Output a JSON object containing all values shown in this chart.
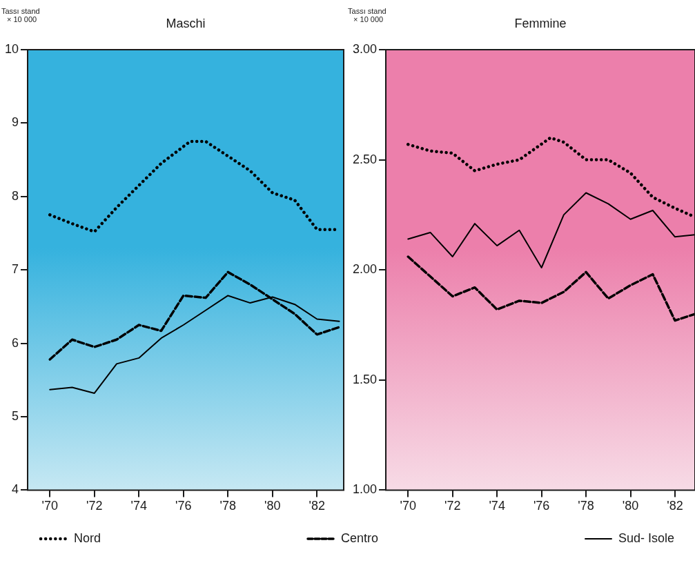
{
  "chart_data": [
    {
      "type": "line",
      "title": "Maschi",
      "ylabel": "Tassı stand × 10 000",
      "xlim": [
        1969,
        1983.2
      ],
      "xticks": [
        {
          "value": 1970,
          "label": "'70"
        },
        {
          "value": 1972,
          "label": "'72"
        },
        {
          "value": 1974,
          "label": "'74"
        },
        {
          "value": 1976,
          "label": "'76"
        },
        {
          "value": 1978,
          "label": "'78"
        },
        {
          "value": 1980,
          "label": "'80"
        },
        {
          "value": 1982,
          "label": "'82"
        }
      ],
      "ylim": [
        4,
        10
      ],
      "yticks": [
        4,
        5,
        6,
        7,
        8,
        9,
        10
      ],
      "legend": "bottom",
      "marker": "none",
      "series": [
        {
          "name": "Nord",
          "color": "#000000",
          "line_style": "dotted",
          "x": [
            1970,
            1971,
            1972,
            1973,
            1974,
            1975,
            1976.3,
            1977,
            1978,
            1979,
            1980,
            1981,
            1982,
            1983
          ],
          "values": [
            7.75,
            7.63,
            7.52,
            7.85,
            8.15,
            8.45,
            8.75,
            8.75,
            8.55,
            8.35,
            8.05,
            7.95,
            7.55,
            7.55
          ]
        },
        {
          "name": "Centro",
          "color": "#000000",
          "line_style": "dashed",
          "x": [
            1970,
            1971,
            1972,
            1973,
            1974,
            1975,
            1976,
            1977,
            1978,
            1979,
            1980,
            1981,
            1982,
            1983
          ],
          "values": [
            5.78,
            6.05,
            5.95,
            6.05,
            6.25,
            6.17,
            6.65,
            6.62,
            6.97,
            6.8,
            6.6,
            6.4,
            6.12,
            6.22
          ]
        },
        {
          "name": "Sud- Isole",
          "color": "#000000",
          "line_style": "solid",
          "x": [
            1970,
            1971,
            1972,
            1973,
            1974,
            1975,
            1976,
            1977,
            1978,
            1979,
            1980,
            1981,
            1982,
            1983
          ],
          "values": [
            5.37,
            5.4,
            5.32,
            5.72,
            5.8,
            6.07,
            6.25,
            6.45,
            6.65,
            6.55,
            6.63,
            6.53,
            6.33,
            6.3
          ]
        }
      ]
    },
    {
      "type": "line",
      "title": "Femmine",
      "ylabel": "Tassı stand × 10 000",
      "xlim": [
        1969,
        1982.9
      ],
      "xticks": [
        {
          "value": 1970,
          "label": "'70"
        },
        {
          "value": 1972,
          "label": "'72"
        },
        {
          "value": 1974,
          "label": "'74"
        },
        {
          "value": 1976,
          "label": "'76"
        },
        {
          "value": 1978,
          "label": "'78"
        },
        {
          "value": 1980,
          "label": "'80"
        },
        {
          "value": 1982,
          "label": "'82"
        }
      ],
      "ylim": [
        1,
        3
      ],
      "yticks": [
        {
          "value": 1,
          "label": "1.00"
        },
        {
          "value": 1.5,
          "label": "1.50"
        },
        {
          "value": 2,
          "label": "2.00"
        },
        {
          "value": 2.5,
          "label": "2.50"
        },
        {
          "value": 3,
          "label": "3.00"
        }
      ],
      "marker": "none",
      "series": [
        {
          "color": "#000000",
          "line_style": "dotted",
          "x": [
            1970,
            1971,
            1972,
            1973,
            1974,
            1975,
            1976.4,
            1977,
            1978,
            1979,
            1980,
            1981,
            1982,
            1982.9
          ],
          "values": [
            2.57,
            2.54,
            2.53,
            2.45,
            2.48,
            2.5,
            2.6,
            2.58,
            2.5,
            2.5,
            2.44,
            2.33,
            2.28,
            2.24
          ]
        },
        {
          "color": "#000000",
          "line_style": "dashed",
          "x": [
            1970,
            1971,
            1972,
            1973,
            1974,
            1975,
            1976,
            1977,
            1978,
            1979,
            1980,
            1981,
            1982,
            1982.9
          ],
          "values": [
            2.06,
            1.97,
            1.88,
            1.92,
            1.82,
            1.86,
            1.85,
            1.9,
            1.99,
            1.87,
            1.93,
            1.98,
            1.77,
            1.8
          ]
        },
        {
          "color": "#000000",
          "line_style": "solid",
          "x": [
            1970,
            1971,
            1972,
            1973,
            1974,
            1975,
            1976,
            1977,
            1978,
            1979,
            1980,
            1981,
            1982,
            1982.9
          ],
          "values": [
            2.14,
            2.17,
            2.06,
            2.21,
            2.11,
            2.18,
            2.01,
            2.25,
            2.35,
            2.3,
            2.23,
            2.27,
            2.15,
            2.16
          ]
        }
      ]
    }
  ]
}
